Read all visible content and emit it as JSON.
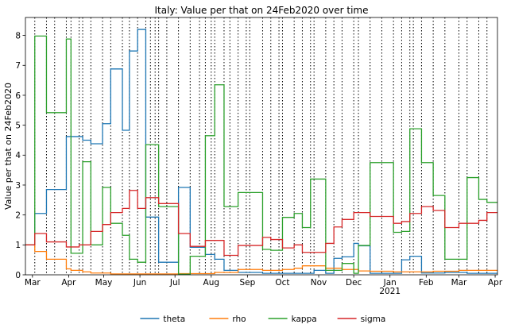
{
  "chart_data": {
    "type": "line",
    "title": "Italy: Value per that on 24Feb2020 over time",
    "xlabel": "",
    "ylabel": "Value per that on 24Feb2020",
    "x_range": [
      "2020-02-24",
      "2021-04-03"
    ],
    "ylim": [
      0,
      8.6
    ],
    "y_ticks": [
      0,
      1,
      2,
      3,
      4,
      5,
      6,
      7,
      8
    ],
    "x_ticks": [
      {
        "date": "2020-03-01",
        "label": "Mar"
      },
      {
        "date": "2020-04-01",
        "label": "Apr"
      },
      {
        "date": "2020-05-01",
        "label": "May"
      },
      {
        "date": "2020-06-01",
        "label": "Jun"
      },
      {
        "date": "2020-07-01",
        "label": "Jul"
      },
      {
        "date": "2020-08-01",
        "label": "Aug"
      },
      {
        "date": "2020-09-01",
        "label": "Sep"
      },
      {
        "date": "2020-10-01",
        "label": "Oct"
      },
      {
        "date": "2020-11-01",
        "label": "Nov"
      },
      {
        "date": "2020-12-01",
        "label": "Dec"
      },
      {
        "date": "2021-01-01",
        "label": "Jan"
      },
      {
        "date": "2021-02-01",
        "label": "Feb"
      },
      {
        "date": "2021-03-01",
        "label": "Mar"
      },
      {
        "date": "2021-04-01",
        "label": "Apr"
      }
    ],
    "x_secondary_label": {
      "date": "2021-01-01",
      "label": "2021"
    },
    "vlines": [
      "2020-03-03",
      "2020-03-13",
      "2020-03-20",
      "2020-03-30",
      "2020-04-03",
      "2020-04-10",
      "2020-04-13",
      "2020-04-20",
      "2020-04-30",
      "2020-05-07",
      "2020-05-17",
      "2020-05-23",
      "2020-05-30",
      "2020-06-06",
      "2020-06-10",
      "2020-06-14",
      "2020-06-17",
      "2020-06-24",
      "2020-07-04",
      "2020-07-14",
      "2020-07-22",
      "2020-07-27",
      "2020-08-01",
      "2020-08-04",
      "2020-08-12",
      "2020-08-17",
      "2020-08-24",
      "2020-08-31",
      "2020-09-03",
      "2020-09-14",
      "2020-09-21",
      "2020-09-28",
      "2020-10-01",
      "2020-10-11",
      "2020-10-18",
      "2020-10-25",
      "2020-10-28",
      "2020-11-07",
      "2020-11-14",
      "2020-11-21",
      "2020-12-01",
      "2020-12-05",
      "2020-12-15",
      "2020-12-25",
      "2021-01-04",
      "2021-01-11",
      "2021-01-18",
      "2021-01-21",
      "2021-01-28",
      "2021-02-07",
      "2021-02-17",
      "2021-03-01",
      "2021-03-08",
      "2021-03-18",
      "2021-03-25"
    ],
    "grid": false,
    "legend_position": "bottom-center",
    "series": [
      {
        "name": "theta",
        "color": "#1f77b4",
        "steps": [
          [
            "2020-02-24",
            1.0
          ],
          [
            "2020-03-03",
            2.05
          ],
          [
            "2020-03-13",
            2.85
          ],
          [
            "2020-03-30",
            4.62
          ],
          [
            "2020-04-10",
            4.62
          ],
          [
            "2020-04-13",
            4.5
          ],
          [
            "2020-04-20",
            4.38
          ],
          [
            "2020-04-30",
            5.05
          ],
          [
            "2020-05-07",
            6.88
          ],
          [
            "2020-05-17",
            4.83
          ],
          [
            "2020-05-23",
            7.48
          ],
          [
            "2020-05-30",
            8.2
          ],
          [
            "2020-06-06",
            1.93
          ],
          [
            "2020-06-17",
            0.42
          ],
          [
            "2020-07-04",
            2.92
          ],
          [
            "2020-07-14",
            0.92
          ],
          [
            "2020-07-27",
            0.68
          ],
          [
            "2020-08-04",
            0.52
          ],
          [
            "2020-08-12",
            0.15
          ],
          [
            "2020-08-24",
            0.08
          ],
          [
            "2020-09-14",
            0.05
          ],
          [
            "2020-10-11",
            0.05
          ],
          [
            "2020-10-28",
            0.15
          ],
          [
            "2020-11-07",
            0.05
          ],
          [
            "2020-11-14",
            0.55
          ],
          [
            "2020-11-21",
            0.6
          ],
          [
            "2020-12-01",
            1.05
          ],
          [
            "2020-12-05",
            0.97
          ],
          [
            "2020-12-15",
            0.05
          ],
          [
            "2021-01-04",
            0.05
          ],
          [
            "2021-01-11",
            0.5
          ],
          [
            "2021-01-18",
            0.62
          ],
          [
            "2021-01-28",
            0.06
          ],
          [
            "2021-02-17",
            0.08
          ],
          [
            "2021-03-01",
            0.08
          ],
          [
            "2021-03-08",
            0.05
          ],
          [
            "2021-03-25",
            0.05
          ]
        ],
        "end": [
          "2021-04-03",
          0.05
        ]
      },
      {
        "name": "rho",
        "color": "#ff7f0e",
        "steps": [
          [
            "2020-02-24",
            1.0
          ],
          [
            "2020-03-03",
            0.78
          ],
          [
            "2020-03-13",
            0.52
          ],
          [
            "2020-03-30",
            0.2
          ],
          [
            "2020-04-03",
            0.15
          ],
          [
            "2020-04-13",
            0.1
          ],
          [
            "2020-04-20",
            0.06
          ],
          [
            "2020-05-07",
            0.03
          ],
          [
            "2020-06-06",
            0.03
          ],
          [
            "2020-07-04",
            0.04
          ],
          [
            "2020-08-04",
            0.08
          ],
          [
            "2020-08-24",
            0.18
          ],
          [
            "2020-09-14",
            0.15
          ],
          [
            "2020-10-01",
            0.18
          ],
          [
            "2020-10-11",
            0.22
          ],
          [
            "2020-10-18",
            0.3
          ],
          [
            "2020-11-07",
            0.22
          ],
          [
            "2020-11-21",
            0.18
          ],
          [
            "2020-12-05",
            0.13
          ],
          [
            "2020-12-15",
            0.12
          ],
          [
            "2021-01-04",
            0.1
          ],
          [
            "2021-02-07",
            0.12
          ],
          [
            "2021-03-01",
            0.15
          ],
          [
            "2021-03-18",
            0.15
          ]
        ],
        "end": [
          "2021-04-03",
          0.15
        ]
      },
      {
        "name": "kappa",
        "color": "#2ca02c",
        "steps": [
          [
            "2020-02-24",
            1.0
          ],
          [
            "2020-03-03",
            7.98
          ],
          [
            "2020-03-13",
            5.42
          ],
          [
            "2020-03-30",
            7.88
          ],
          [
            "2020-04-03",
            0.72
          ],
          [
            "2020-04-13",
            3.78
          ],
          [
            "2020-04-20",
            1.0
          ],
          [
            "2020-04-30",
            2.92
          ],
          [
            "2020-05-07",
            1.72
          ],
          [
            "2020-05-17",
            1.32
          ],
          [
            "2020-05-23",
            0.52
          ],
          [
            "2020-05-30",
            0.42
          ],
          [
            "2020-06-06",
            4.35
          ],
          [
            "2020-06-17",
            2.28
          ],
          [
            "2020-07-04",
            0.02
          ],
          [
            "2020-07-14",
            0.62
          ],
          [
            "2020-07-27",
            4.65
          ],
          [
            "2020-08-04",
            6.35
          ],
          [
            "2020-08-12",
            2.28
          ],
          [
            "2020-08-24",
            2.75
          ],
          [
            "2020-09-14",
            0.85
          ],
          [
            "2020-09-21",
            0.82
          ],
          [
            "2020-10-01",
            1.92
          ],
          [
            "2020-10-11",
            2.05
          ],
          [
            "2020-10-18",
            1.58
          ],
          [
            "2020-10-25",
            3.2
          ],
          [
            "2020-11-07",
            0.15
          ],
          [
            "2020-11-21",
            0.38
          ],
          [
            "2020-12-01",
            0.05
          ],
          [
            "2020-12-05",
            0.98
          ],
          [
            "2020-12-15",
            3.75
          ],
          [
            "2021-01-04",
            1.42
          ],
          [
            "2021-01-11",
            1.45
          ],
          [
            "2021-01-18",
            4.88
          ],
          [
            "2021-01-28",
            3.75
          ],
          [
            "2021-02-07",
            2.65
          ],
          [
            "2021-02-17",
            0.52
          ],
          [
            "2021-03-08",
            3.25
          ],
          [
            "2021-03-18",
            2.52
          ],
          [
            "2021-03-25",
            2.42
          ]
        ],
        "end": [
          "2021-04-03",
          2.42
        ]
      },
      {
        "name": "sigma",
        "color": "#d62728",
        "steps": [
          [
            "2020-02-24",
            1.0
          ],
          [
            "2020-03-03",
            1.38
          ],
          [
            "2020-03-13",
            1.1
          ],
          [
            "2020-03-30",
            0.93
          ],
          [
            "2020-04-10",
            1.0
          ],
          [
            "2020-04-20",
            1.45
          ],
          [
            "2020-04-30",
            1.68
          ],
          [
            "2020-05-07",
            2.08
          ],
          [
            "2020-05-17",
            2.22
          ],
          [
            "2020-05-23",
            2.82
          ],
          [
            "2020-05-30",
            2.22
          ],
          [
            "2020-06-06",
            2.58
          ],
          [
            "2020-06-17",
            2.38
          ],
          [
            "2020-07-04",
            1.38
          ],
          [
            "2020-07-14",
            0.95
          ],
          [
            "2020-07-27",
            1.15
          ],
          [
            "2020-08-12",
            0.65
          ],
          [
            "2020-08-24",
            0.98
          ],
          [
            "2020-09-14",
            1.25
          ],
          [
            "2020-09-21",
            1.18
          ],
          [
            "2020-10-01",
            0.9
          ],
          [
            "2020-10-11",
            1.0
          ],
          [
            "2020-10-18",
            0.75
          ],
          [
            "2020-11-07",
            1.05
          ],
          [
            "2020-11-14",
            1.6
          ],
          [
            "2020-11-21",
            1.85
          ],
          [
            "2020-12-01",
            2.08
          ],
          [
            "2020-12-15",
            1.95
          ],
          [
            "2021-01-04",
            1.72
          ],
          [
            "2021-01-11",
            1.78
          ],
          [
            "2021-01-18",
            2.05
          ],
          [
            "2021-01-28",
            2.28
          ],
          [
            "2021-02-07",
            2.15
          ],
          [
            "2021-02-17",
            1.58
          ],
          [
            "2021-03-01",
            1.72
          ],
          [
            "2021-03-08",
            1.72
          ],
          [
            "2021-03-18",
            1.82
          ],
          [
            "2021-03-25",
            2.08
          ]
        ],
        "end": [
          "2021-04-03",
          2.08
        ]
      }
    ]
  }
}
